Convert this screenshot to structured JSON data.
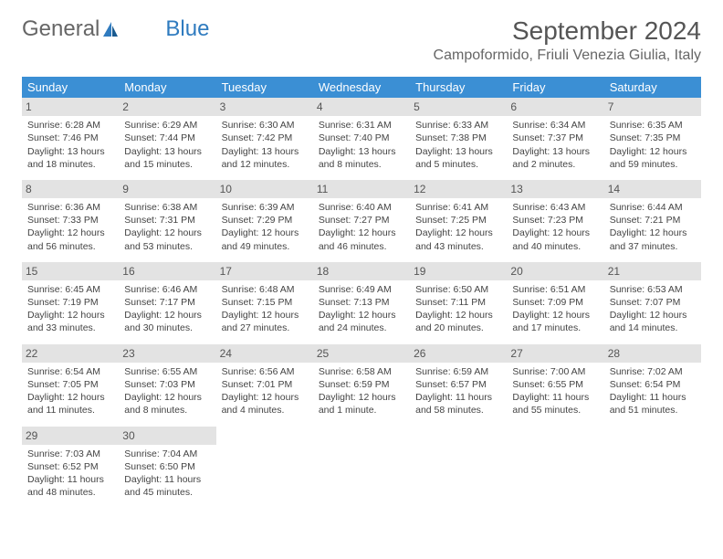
{
  "brand": {
    "part1": "General",
    "part2": "Blue"
  },
  "title": "September 2024",
  "location": "Campoformido, Friuli Venezia Giulia, Italy",
  "colors": {
    "header_bg": "#3b8fd4",
    "header_text": "#ffffff",
    "daynum_bg": "#e3e3e3",
    "brand_blue": "#2f7bbf",
    "text": "#444444"
  },
  "weekdays": [
    "Sunday",
    "Monday",
    "Tuesday",
    "Wednesday",
    "Thursday",
    "Friday",
    "Saturday"
  ],
  "days": [
    {
      "n": "1",
      "sr": "6:28 AM",
      "ss": "7:46 PM",
      "dl": "13 hours and 18 minutes."
    },
    {
      "n": "2",
      "sr": "6:29 AM",
      "ss": "7:44 PM",
      "dl": "13 hours and 15 minutes."
    },
    {
      "n": "3",
      "sr": "6:30 AM",
      "ss": "7:42 PM",
      "dl": "13 hours and 12 minutes."
    },
    {
      "n": "4",
      "sr": "6:31 AM",
      "ss": "7:40 PM",
      "dl": "13 hours and 8 minutes."
    },
    {
      "n": "5",
      "sr": "6:33 AM",
      "ss": "7:38 PM",
      "dl": "13 hours and 5 minutes."
    },
    {
      "n": "6",
      "sr": "6:34 AM",
      "ss": "7:37 PM",
      "dl": "13 hours and 2 minutes."
    },
    {
      "n": "7",
      "sr": "6:35 AM",
      "ss": "7:35 PM",
      "dl": "12 hours and 59 minutes."
    },
    {
      "n": "8",
      "sr": "6:36 AM",
      "ss": "7:33 PM",
      "dl": "12 hours and 56 minutes."
    },
    {
      "n": "9",
      "sr": "6:38 AM",
      "ss": "7:31 PM",
      "dl": "12 hours and 53 minutes."
    },
    {
      "n": "10",
      "sr": "6:39 AM",
      "ss": "7:29 PM",
      "dl": "12 hours and 49 minutes."
    },
    {
      "n": "11",
      "sr": "6:40 AM",
      "ss": "7:27 PM",
      "dl": "12 hours and 46 minutes."
    },
    {
      "n": "12",
      "sr": "6:41 AM",
      "ss": "7:25 PM",
      "dl": "12 hours and 43 minutes."
    },
    {
      "n": "13",
      "sr": "6:43 AM",
      "ss": "7:23 PM",
      "dl": "12 hours and 40 minutes."
    },
    {
      "n": "14",
      "sr": "6:44 AM",
      "ss": "7:21 PM",
      "dl": "12 hours and 37 minutes."
    },
    {
      "n": "15",
      "sr": "6:45 AM",
      "ss": "7:19 PM",
      "dl": "12 hours and 33 minutes."
    },
    {
      "n": "16",
      "sr": "6:46 AM",
      "ss": "7:17 PM",
      "dl": "12 hours and 30 minutes."
    },
    {
      "n": "17",
      "sr": "6:48 AM",
      "ss": "7:15 PM",
      "dl": "12 hours and 27 minutes."
    },
    {
      "n": "18",
      "sr": "6:49 AM",
      "ss": "7:13 PM",
      "dl": "12 hours and 24 minutes."
    },
    {
      "n": "19",
      "sr": "6:50 AM",
      "ss": "7:11 PM",
      "dl": "12 hours and 20 minutes."
    },
    {
      "n": "20",
      "sr": "6:51 AM",
      "ss": "7:09 PM",
      "dl": "12 hours and 17 minutes."
    },
    {
      "n": "21",
      "sr": "6:53 AM",
      "ss": "7:07 PM",
      "dl": "12 hours and 14 minutes."
    },
    {
      "n": "22",
      "sr": "6:54 AM",
      "ss": "7:05 PM",
      "dl": "12 hours and 11 minutes."
    },
    {
      "n": "23",
      "sr": "6:55 AM",
      "ss": "7:03 PM",
      "dl": "12 hours and 8 minutes."
    },
    {
      "n": "24",
      "sr": "6:56 AM",
      "ss": "7:01 PM",
      "dl": "12 hours and 4 minutes."
    },
    {
      "n": "25",
      "sr": "6:58 AM",
      "ss": "6:59 PM",
      "dl": "12 hours and 1 minute."
    },
    {
      "n": "26",
      "sr": "6:59 AM",
      "ss": "6:57 PM",
      "dl": "11 hours and 58 minutes."
    },
    {
      "n": "27",
      "sr": "7:00 AM",
      "ss": "6:55 PM",
      "dl": "11 hours and 55 minutes."
    },
    {
      "n": "28",
      "sr": "7:02 AM",
      "ss": "6:54 PM",
      "dl": "11 hours and 51 minutes."
    },
    {
      "n": "29",
      "sr": "7:03 AM",
      "ss": "6:52 PM",
      "dl": "11 hours and 48 minutes."
    },
    {
      "n": "30",
      "sr": "7:04 AM",
      "ss": "6:50 PM",
      "dl": "11 hours and 45 minutes."
    }
  ],
  "labels": {
    "sunrise": "Sunrise:",
    "sunset": "Sunset:",
    "daylight": "Daylight:"
  }
}
